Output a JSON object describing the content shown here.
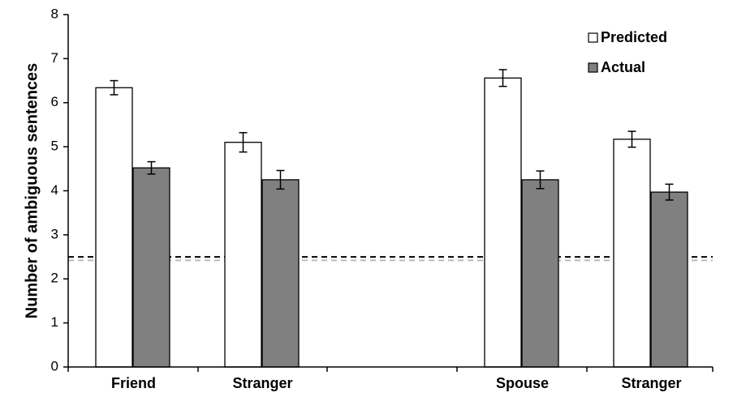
{
  "chart_data": {
    "type": "bar",
    "title": "",
    "xlabel": "",
    "ylabel": "Number of ambiguous sentences",
    "ylim": [
      0,
      8
    ],
    "yticks": [
      0,
      1,
      2,
      3,
      4,
      5,
      6,
      7,
      8
    ],
    "grid": false,
    "legend_position": "top-right",
    "categories": [
      "Friend",
      "Stranger",
      "Spouse",
      "Stranger"
    ],
    "category_groups": [
      [
        0,
        1
      ],
      [
        2,
        3
      ]
    ],
    "series": [
      {
        "name": "Predicted",
        "color": "#ffffff",
        "values": [
          6.34,
          5.1,
          6.56,
          5.17
        ],
        "errors": [
          0.16,
          0.22,
          0.19,
          0.18
        ]
      },
      {
        "name": "Actual",
        "color": "#808080",
        "values": [
          4.52,
          4.25,
          4.25,
          3.97
        ],
        "errors": [
          0.14,
          0.21,
          0.2,
          0.18
        ]
      }
    ],
    "reference_lines": [
      {
        "y": 2.5,
        "style": "dashed",
        "color": "#000000"
      },
      {
        "y": 2.42,
        "style": "dashed",
        "color": "#bbbbbb"
      }
    ]
  }
}
